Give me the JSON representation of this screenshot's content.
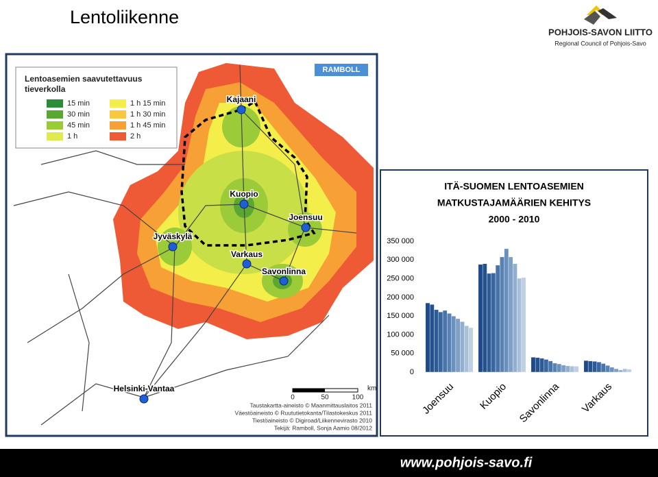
{
  "slide": {
    "title": "Lentoliikenne",
    "footer": "www.pohjois-savo.fi"
  },
  "logo": {
    "name": "POHJOIS-SAVON LIITTO",
    "subtitle": "Regional Council of Pohjois-Savo"
  },
  "map": {
    "legend_title": [
      "Lentoasemien saavutettavuus",
      "tieverkolla"
    ],
    "legend_items": [
      "15 min",
      "30 min",
      "45 min",
      "1 h",
      "1 h 15 min",
      "1 h 30 min",
      "1 h 45 min",
      "2 h"
    ],
    "brand": "RAMBOLL",
    "cities": [
      "Kajaani",
      "Kuopio",
      "Joensuu",
      "Jyväskylä",
      "Varkaus",
      "Savonlinna",
      "Helsinki-Vantaa"
    ],
    "scale_unit": "km",
    "scale_labels": [
      "0",
      "50",
      "100"
    ],
    "credits": [
      "Taustakartta-aineisto © Maanmittauslaitos 2011",
      "Väestöaineisto © Ruututietokanta/Tilastokeskus 2011",
      "Tiestöaineisto © Digiroad/Liikennevirasto 2010",
      "Tekijä: Ramboll, Sonja Aamio 08/2012"
    ]
  },
  "chart_data": {
    "type": "bar",
    "title": [
      "ITÄ-SUOMEN LENTOASEMIEN",
      "MATKUSTAJAMÄÄRIEN KEHITYS",
      "2000 - 2010"
    ],
    "categories": [
      "Joensuu",
      "Kuopio",
      "Savonlinna",
      "Varkaus"
    ],
    "series": [
      {
        "color": "#1f4a8a",
        "values": [
          185000,
          288000,
          40000,
          31000
        ]
      },
      {
        "color": "#24528f",
        "values": [
          181000,
          290000,
          39000,
          30000
        ]
      },
      {
        "color": "#2c5b97",
        "values": [
          167000,
          264000,
          37000,
          29000
        ]
      },
      {
        "color": "#3a67a0",
        "values": [
          161000,
          265000,
          34000,
          27000
        ]
      },
      {
        "color": "#4874aa",
        "values": [
          165000,
          286000,
          30000,
          23000
        ]
      },
      {
        "color": "#5882b3",
        "values": [
          157000,
          308000,
          24000,
          18000
        ]
      },
      {
        "color": "#6a90bd",
        "values": [
          150000,
          330000,
          22000,
          13000
        ]
      },
      {
        "color": "#7e9fc6",
        "values": [
          143000,
          308000,
          19000,
          9000
        ]
      },
      {
        "color": "#93afcf",
        "values": [
          135000,
          290000,
          17000,
          6000
        ]
      },
      {
        "color": "#a9c0d9",
        "values": [
          124000,
          251000,
          16000,
          9000
        ]
      },
      {
        "color": "#bfd0e3",
        "values": [
          119000,
          253000,
          16000,
          8000
        ]
      }
    ],
    "ylim": [
      0,
      350000
    ],
    "yticks": [
      0,
      {
        "value": 50000,
        "label": "50 000"
      },
      {
        "value": 100000,
        "label": "100 000"
      },
      {
        "value": 150000,
        "label": "150 000"
      },
      {
        "value": 200000,
        "label": "200 000"
      },
      {
        "value": 250000,
        "label": "250 000"
      },
      {
        "value": 300000,
        "label": "300 000"
      },
      {
        "value": 350000,
        "label": "350 000"
      }
    ],
    "grid": false
  }
}
